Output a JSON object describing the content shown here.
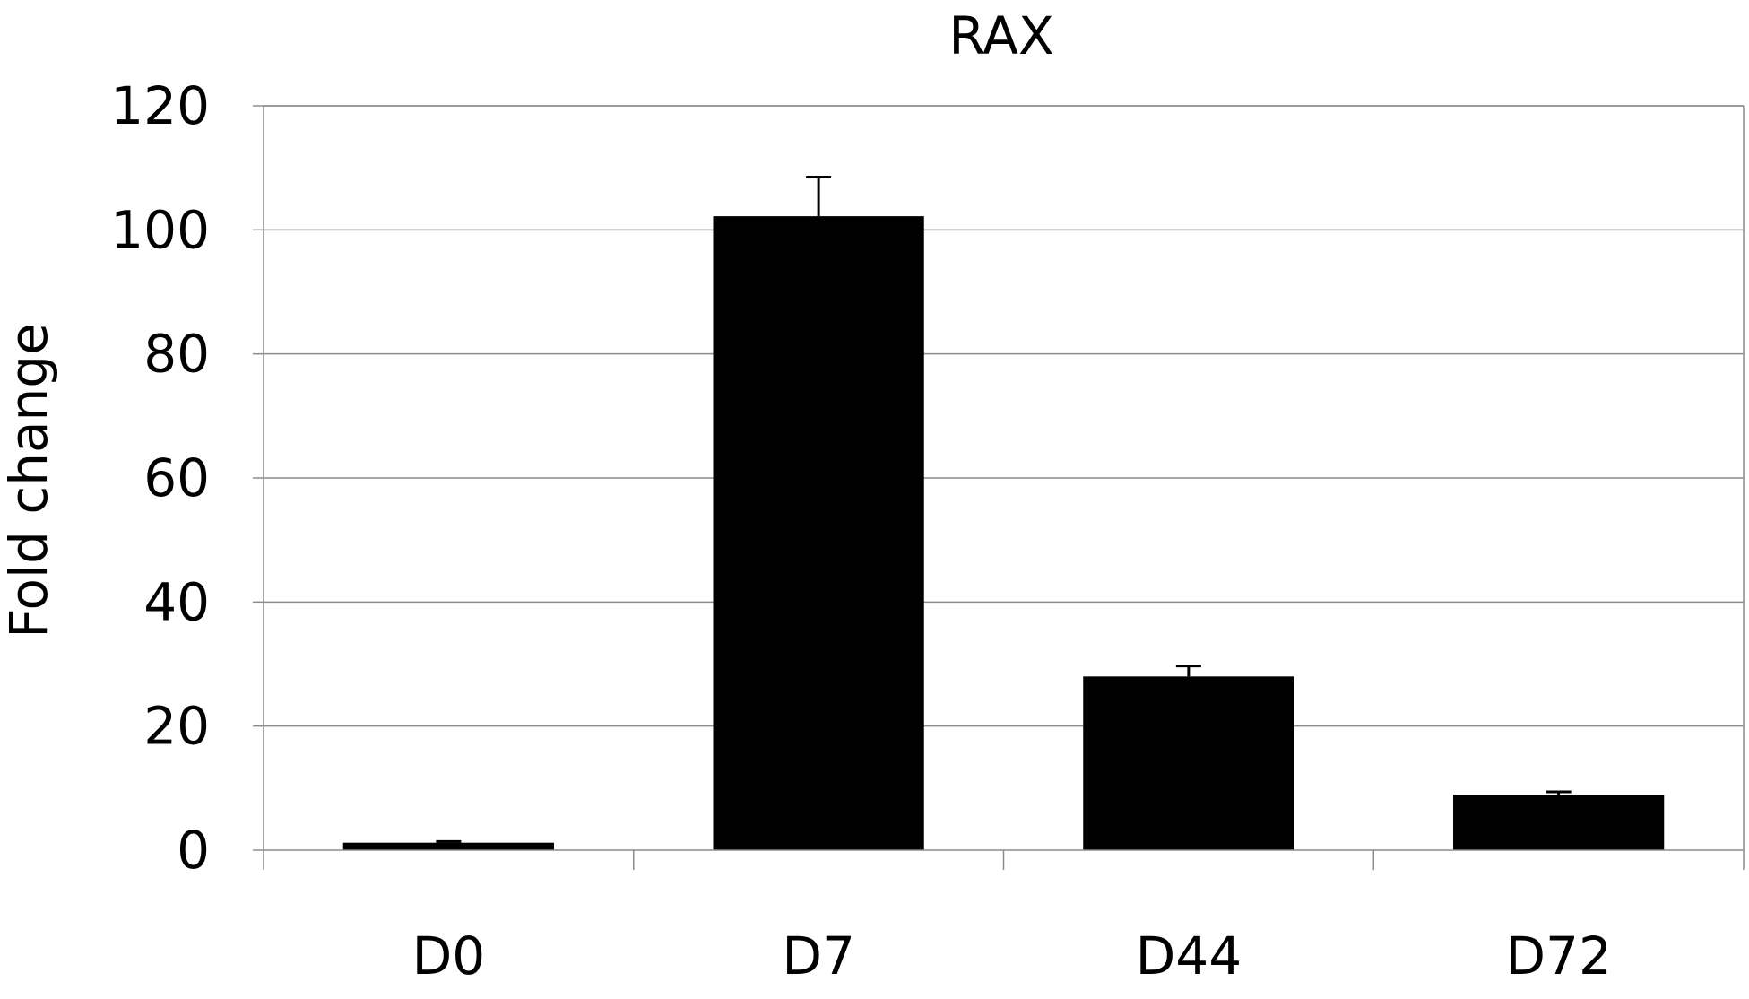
{
  "chart_data": {
    "type": "bar",
    "title": "RAX",
    "xlabel": "",
    "ylabel": "Fold change",
    "categories": [
      "D0",
      "D7",
      "D44",
      "D72"
    ],
    "values": [
      1.2,
      102.2,
      28.0,
      8.9
    ],
    "error_plus": [
      0.2,
      6.3,
      1.7,
      0.5
    ],
    "ylim": [
      0,
      120
    ],
    "yticks": [
      "0",
      "20",
      "40",
      "60",
      "80",
      "100",
      "120"
    ],
    "grid": true,
    "legend": "none",
    "bar_color": "#000000"
  }
}
